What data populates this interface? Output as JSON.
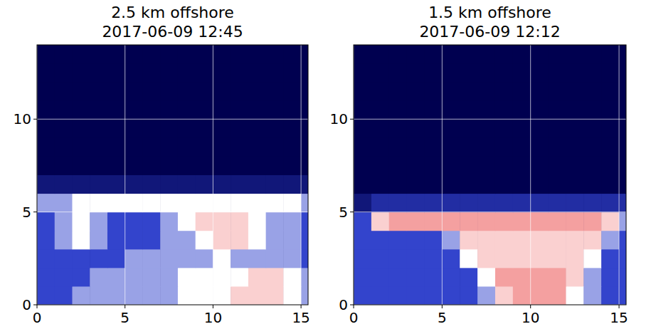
{
  "chart_data": [
    {
      "type": "heatmap",
      "title": "2.5 km offshore",
      "subtitle": "2017-06-09 12:45",
      "xlim": [
        0,
        15.4
      ],
      "ylim": [
        0,
        14
      ],
      "xticks": [
        0,
        5,
        10,
        15
      ],
      "yticks": [
        0,
        5,
        10
      ],
      "grid": true,
      "zlim": [
        0,
        10
      ],
      "x_edges": [
        0,
        1,
        2,
        3,
        4,
        5,
        6,
        7,
        8,
        9,
        10,
        11,
        12,
        13,
        14,
        15,
        15.4
      ],
      "y_edges": [
        0,
        1,
        2,
        3,
        4,
        5,
        6,
        7,
        8,
        9,
        10,
        11,
        12,
        13,
        14
      ],
      "cells": [
        [
          3,
          3,
          4,
          4,
          4,
          4,
          4,
          4,
          5,
          5,
          5,
          6,
          6,
          6,
          5,
          4
        ],
        [
          3,
          3,
          3,
          4,
          4,
          4,
          4,
          4,
          5,
          5,
          5,
          5,
          6,
          6,
          5,
          4
        ],
        [
          3,
          3,
          3,
          3,
          3,
          4,
          4,
          4,
          4,
          4,
          5,
          4,
          4,
          4,
          4,
          3
        ],
        [
          3,
          4,
          5,
          4,
          3,
          3,
          3,
          4,
          4,
          5,
          6,
          6,
          5,
          4,
          4,
          3
        ],
        [
          3,
          4,
          5,
          4,
          3,
          3,
          3,
          4,
          5,
          6,
          6,
          6,
          5,
          4,
          4,
          3
        ],
        [
          4,
          4,
          5,
          5,
          5,
          5,
          5,
          5,
          5,
          5,
          5,
          5,
          5,
          5,
          5,
          4
        ],
        [
          1,
          1,
          1,
          1,
          1,
          1,
          1,
          1,
          1,
          1,
          1,
          1,
          1,
          1,
          1,
          1
        ],
        [
          0,
          0,
          0,
          0,
          0,
          0,
          0,
          0,
          0,
          0,
          0,
          0,
          0,
          0,
          0,
          0
        ],
        [
          0,
          0,
          0,
          0,
          0,
          0,
          0,
          0,
          0,
          0,
          0,
          0,
          0,
          0,
          0,
          0
        ],
        [
          0,
          0,
          0,
          0,
          0,
          0,
          0,
          0,
          0,
          0,
          0,
          0,
          0,
          0,
          0,
          0
        ],
        [
          0,
          0,
          0,
          0,
          0,
          0,
          0,
          0,
          0,
          0,
          0,
          0,
          0,
          0,
          0,
          0
        ],
        [
          0,
          0,
          0,
          0,
          0,
          0,
          0,
          0,
          0,
          0,
          0,
          0,
          0,
          0,
          0,
          0
        ],
        [
          0,
          0,
          0,
          0,
          0,
          0,
          0,
          0,
          0,
          0,
          0,
          0,
          0,
          0,
          0,
          0
        ],
        [
          0,
          0,
          0,
          0,
          0,
          0,
          0,
          0,
          0,
          0,
          0,
          0,
          0,
          0,
          0,
          0
        ]
      ]
    },
    {
      "type": "heatmap",
      "title": "1.5 km offshore",
      "subtitle": "2017-06-09 12:12",
      "xlim": [
        0,
        15.4
      ],
      "ylim": [
        0,
        14
      ],
      "xticks": [
        0,
        5,
        10,
        15
      ],
      "yticks": [
        0,
        5,
        10
      ],
      "grid": true,
      "zlim": [
        0,
        10
      ],
      "x_edges": [
        0,
        1,
        2,
        3,
        4,
        5,
        6,
        7,
        8,
        9,
        10,
        11,
        12,
        13,
        14,
        15,
        15.4
      ],
      "y_edges": [
        0,
        1,
        2,
        3,
        4,
        5,
        6,
        7,
        8,
        9,
        10,
        11,
        12,
        13,
        14
      ],
      "cells": [
        [
          3,
          3,
          3,
          3,
          3,
          3,
          3,
          4,
          6,
          7,
          7,
          7,
          5,
          4,
          3,
          3
        ],
        [
          3,
          3,
          3,
          3,
          3,
          3,
          3,
          5,
          7,
          7,
          7,
          7,
          6,
          4,
          3,
          3
        ],
        [
          3,
          3,
          3,
          3,
          3,
          3,
          5,
          6,
          6,
          6,
          6,
          6,
          6,
          5,
          3,
          3
        ],
        [
          3,
          3,
          3,
          3,
          3,
          4,
          6,
          6,
          6,
          6,
          6,
          6,
          6,
          6,
          4,
          3
        ],
        [
          3,
          6,
          7,
          7,
          7,
          7,
          7,
          7,
          7,
          7,
          7,
          7,
          7,
          7,
          6,
          4
        ],
        [
          1,
          2,
          2,
          2,
          2,
          2,
          2,
          2,
          2,
          2,
          2,
          2,
          2,
          2,
          2,
          2
        ],
        [
          0,
          0,
          0,
          0,
          0,
          0,
          0,
          0,
          0,
          0,
          0,
          0,
          0,
          0,
          0,
          0
        ],
        [
          0,
          0,
          0,
          0,
          0,
          0,
          0,
          0,
          0,
          0,
          0,
          0,
          0,
          0,
          0,
          0
        ],
        [
          0,
          0,
          0,
          0,
          0,
          0,
          0,
          0,
          0,
          0,
          0,
          0,
          0,
          0,
          0,
          0
        ],
        [
          0,
          0,
          0,
          0,
          0,
          0,
          0,
          0,
          0,
          0,
          0,
          0,
          0,
          0,
          0,
          0
        ],
        [
          0,
          0,
          0,
          0,
          0,
          0,
          0,
          0,
          0,
          0,
          0,
          0,
          0,
          0,
          0,
          0
        ],
        [
          0,
          0,
          0,
          0,
          0,
          0,
          0,
          0,
          0,
          0,
          0,
          0,
          0,
          0,
          0,
          0
        ],
        [
          0,
          0,
          0,
          0,
          0,
          0,
          0,
          0,
          0,
          0,
          0,
          0,
          0,
          0,
          0,
          0
        ],
        [
          0,
          0,
          0,
          0,
          0,
          0,
          0,
          0,
          0,
          0,
          0,
          0,
          0,
          0,
          0,
          0
        ]
      ]
    }
  ]
}
